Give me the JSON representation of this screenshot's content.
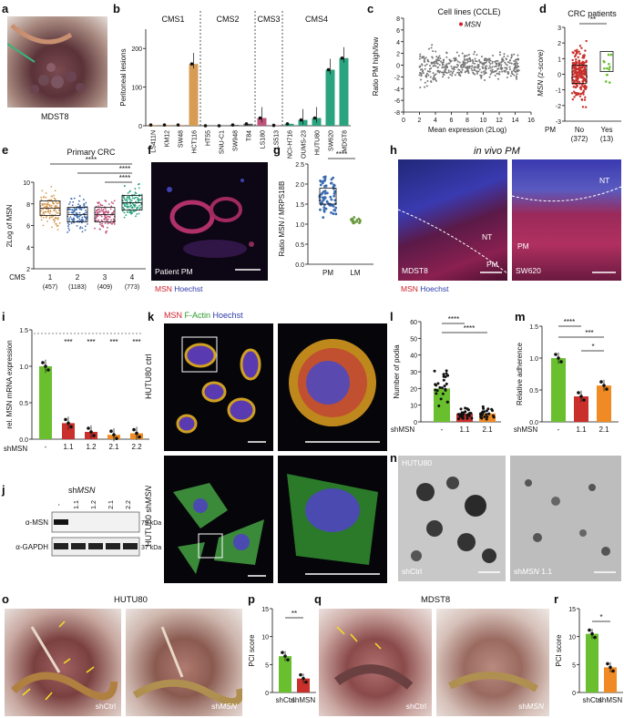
{
  "panels": {
    "a": {
      "letter": "a",
      "caption": "MDST8"
    },
    "b": {
      "letter": "b",
      "ylabel": "Peritoneal lesions",
      "groups": [
        "CMS1",
        "CMS2",
        "CMS3",
        "CMS4"
      ],
      "categories": [
        "LS411N",
        "KM12",
        "SW48",
        "HCT116",
        "HT55",
        "SNU-C1",
        "SW948",
        "T84",
        "LS180",
        "LS513",
        "NCI-H716",
        "OUMS-23",
        "HUTU80",
        "SW620",
        "MDST8"
      ],
      "values": [
        2,
        2,
        2,
        160,
        0,
        0,
        2,
        5,
        20,
        1,
        5,
        15,
        20,
        145,
        175
      ],
      "yticks": [
        "0",
        "100",
        "200"
      ]
    },
    "c": {
      "letter": "c",
      "title": "Cell lines (CCLE)",
      "highlight": "MSN",
      "ylabel": "Ratio PM high/low",
      "xlabel": "Mean expression (2Log)",
      "yticks": [
        "8",
        "6",
        "4",
        "2",
        "0",
        "-2",
        "-4",
        "-6",
        "-8"
      ],
      "xticks": [
        "0",
        "2",
        "4",
        "6",
        "8",
        "10",
        "12",
        "14",
        "16"
      ]
    },
    "d": {
      "letter": "d",
      "title": "CRC patients",
      "ylabel": "MSN (z-score)",
      "sig": "**",
      "pm_label": "PM",
      "groups": [
        "No",
        "Yes"
      ],
      "counts": [
        "(372)",
        "(13)"
      ],
      "yticks": [
        "3",
        "2",
        "1",
        "0",
        "-1",
        "-2",
        "-3"
      ]
    },
    "e": {
      "letter": "e",
      "title": "Primary CRC",
      "ylabel": "2Log of MSN",
      "sig": [
        "****",
        "****",
        "****"
      ],
      "cms_label": "CMS",
      "groups": [
        "1",
        "2",
        "3",
        "4"
      ],
      "counts": [
        "(457)",
        "(1183)",
        "(409)",
        "(773)"
      ],
      "yticks": [
        "10",
        "8",
        "6",
        "4",
        "2"
      ]
    },
    "f": {
      "letter": "f",
      "caption": "Patient PM",
      "legend_msn": "MSN",
      "legend_hoechst": "Hoechst"
    },
    "g": {
      "letter": "g",
      "ylabel": "Ratio MSN / MRPS18B",
      "sig": "****",
      "groups": [
        "PM",
        "LM"
      ],
      "yticks": [
        "2.5",
        "2.0",
        "1.5",
        "1.0",
        "0.5",
        "0.0"
      ]
    },
    "h": {
      "letter": "h",
      "title": "in vivo PM",
      "labels": [
        "NT",
        "PM",
        "NT",
        "PM"
      ],
      "captions": [
        "MDST8",
        "SW620"
      ],
      "legend_msn": "MSN",
      "legend_hoechst": "Hoechst"
    },
    "i": {
      "letter": "i",
      "ylabel": "rel. MSN mRNA expression",
      "sig": "***",
      "shlabel": "shMSN",
      "groups": [
        "-",
        "1.1",
        "1.2",
        "2.1",
        "2.2"
      ],
      "values": [
        1.0,
        0.22,
        0.1,
        0.06,
        0.08
      ],
      "yticks": [
        "1.5",
        "1.0",
        "0.5",
        "0.0"
      ]
    },
    "j": {
      "letter": "j",
      "shlabel": "shMSN",
      "groups": [
        "-",
        "1.1",
        "1.2",
        "2.1",
        "2.2"
      ],
      "rows": [
        "α-MSN",
        "α-GAPDH"
      ],
      "kda": [
        "75 kDa",
        "37 kDa"
      ]
    },
    "k": {
      "letter": "k",
      "stain_msn": "MSN",
      "stain_actin": "F-Actin",
      "stain_hoechst": "Hoechst",
      "rows": [
        "HUTU80 ctrl",
        "HUTU80 shMSN"
      ]
    },
    "l": {
      "letter": "l",
      "ylabel": "Number of podia",
      "sig": [
        "****",
        "****"
      ],
      "shlabel": "shMSN",
      "groups": [
        "-",
        "1.1",
        "2.1"
      ],
      "values": [
        20,
        5,
        5
      ],
      "yticks": [
        "60",
        "50",
        "40",
        "30",
        "20",
        "10",
        "0"
      ]
    },
    "m": {
      "letter": "m",
      "ylabel": "Relative adherence",
      "sig": [
        "****",
        "***",
        "*"
      ],
      "shlabel": "shMSN",
      "groups": [
        "-",
        "1.1",
        "2.1"
      ],
      "values": [
        1.0,
        0.4,
        0.57
      ],
      "yticks": [
        "1.5",
        "1.0",
        "0.5",
        "0.0"
      ]
    },
    "n": {
      "letter": "n",
      "title": "HUTU80",
      "captions": [
        "shCtrl",
        "shMSN 1.1"
      ]
    },
    "o": {
      "letter": "o",
      "title": "HUTU80",
      "captions": [
        "shCtrl",
        "shMSN"
      ]
    },
    "p": {
      "letter": "p",
      "ylabel": "PCI score",
      "sig": "**",
      "groups": [
        "shCtrl",
        "shMSN"
      ],
      "values": [
        6.5,
        2.5
      ],
      "yticks": [
        "15",
        "10",
        "5",
        "0"
      ]
    },
    "q": {
      "letter": "q",
      "title": "MDST8",
      "captions": [
        "shCtrl",
        "shMSN"
      ]
    },
    "r": {
      "letter": "r",
      "ylabel": "PCI score",
      "sig": "*",
      "groups": [
        "shCtrl",
        "shMSN"
      ],
      "values": [
        10.5,
        4.5
      ],
      "yticks": [
        "15",
        "10",
        "5",
        "0"
      ]
    }
  },
  "colors": {
    "green": "#6abf2e",
    "red": "#c9302c",
    "orange": "#f08a24",
    "teal": "#2aa37f",
    "pink": "#c0527a",
    "tan": "#d79b54"
  }
}
